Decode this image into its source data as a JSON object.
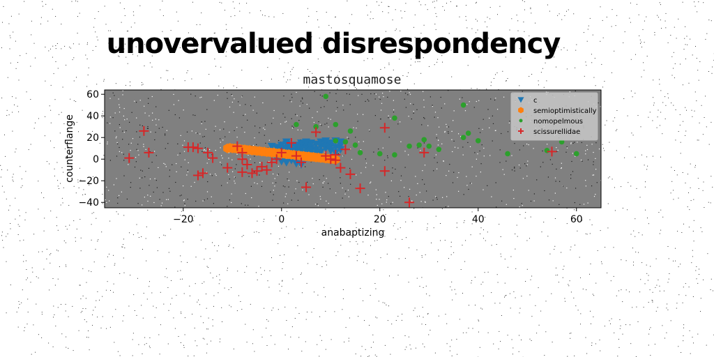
{
  "chart_data": {
    "type": "scatter",
    "suptitle": "unovervalued disrespondency",
    "title": "mastosquamose",
    "xlabel": "anabaptizing",
    "ylabel": "counterflange",
    "xlim": [
      -36,
      65
    ],
    "ylim": [
      -45,
      64
    ],
    "xticks": [
      -20,
      0,
      20,
      40,
      60
    ],
    "yticks": [
      -40,
      -20,
      0,
      20,
      40,
      60
    ],
    "plot_background": "#808080",
    "grid": false,
    "legend_position": "upper right",
    "series": [
      {
        "name": "c",
        "marker": "triangle-down",
        "color": "#1f77b4",
        "points": [
          [
            -2,
            12
          ],
          [
            -1,
            11
          ],
          [
            0,
            13
          ],
          [
            0,
            9
          ],
          [
            1,
            10
          ],
          [
            1,
            14
          ],
          [
            2,
            12
          ],
          [
            2,
            8
          ],
          [
            3,
            11
          ],
          [
            3,
            13
          ],
          [
            3,
            7
          ],
          [
            4,
            9
          ],
          [
            4,
            12
          ],
          [
            4,
            15
          ],
          [
            5,
            10
          ],
          [
            5,
            6
          ],
          [
            5,
            13
          ],
          [
            6,
            11
          ],
          [
            6,
            8
          ],
          [
            6,
            15
          ],
          [
            7,
            14
          ],
          [
            7,
            9
          ],
          [
            7,
            5
          ],
          [
            8,
            12
          ],
          [
            8,
            16
          ],
          [
            8,
            7
          ],
          [
            9,
            10
          ],
          [
            9,
            14
          ],
          [
            9,
            17
          ],
          [
            10,
            8
          ],
          [
            10,
            12
          ],
          [
            10,
            15
          ],
          [
            11,
            11
          ],
          [
            11,
            6
          ],
          [
            11,
            17
          ],
          [
            12,
            9
          ],
          [
            12,
            13
          ],
          [
            12,
            16
          ],
          [
            3,
            4
          ],
          [
            4,
            2
          ],
          [
            5,
            1
          ],
          [
            2,
            -1
          ],
          [
            3,
            -4
          ],
          [
            4,
            -5
          ],
          [
            -1,
            1
          ],
          [
            0,
            -2
          ],
          [
            1,
            -3
          ],
          [
            6,
            2
          ],
          [
            7,
            3
          ],
          [
            1,
            16
          ],
          [
            5,
            16
          ],
          [
            2,
            4
          ],
          [
            -2,
            6
          ],
          [
            -3,
            8
          ]
        ]
      },
      {
        "name": "semioptimistically",
        "marker": "hexagon",
        "color": "#ff7f0e",
        "points": [
          [
            -11,
            10
          ],
          [
            -10,
            10
          ],
          [
            -9,
            9.5
          ],
          [
            -8,
            9
          ],
          [
            -7,
            8.5
          ],
          [
            -6,
            8
          ],
          [
            -5,
            7.5
          ],
          [
            -4,
            7
          ],
          [
            -3,
            6.5
          ],
          [
            -2,
            6
          ],
          [
            -1,
            5.5
          ],
          [
            0,
            5
          ],
          [
            1,
            4.5
          ],
          [
            2,
            4
          ],
          [
            3,
            3.5
          ],
          [
            4,
            3
          ],
          [
            5,
            2.5
          ],
          [
            6,
            2
          ],
          [
            7,
            1.5
          ],
          [
            8,
            1
          ],
          [
            9,
            0.5
          ],
          [
            10,
            0
          ],
          [
            11,
            -0.5
          ],
          [
            -10.5,
            10.5
          ],
          [
            -9.5,
            10
          ],
          [
            -8.5,
            9.5
          ],
          [
            -7.5,
            9
          ],
          [
            -6.5,
            8.5
          ],
          [
            -5.5,
            8
          ],
          [
            -4.5,
            7.5
          ],
          [
            -3.5,
            7
          ],
          [
            -2.5,
            6.5
          ],
          [
            -1.5,
            6
          ],
          [
            -0.5,
            5.5
          ],
          [
            0.5,
            5
          ],
          [
            1.5,
            4.5
          ],
          [
            2.5,
            4
          ],
          [
            3.5,
            3.5
          ],
          [
            4.5,
            3
          ],
          [
            5.5,
            2.5
          ],
          [
            6.5,
            2
          ],
          [
            7.5,
            1.5
          ],
          [
            8.5,
            1
          ],
          [
            9.5,
            0.5
          ],
          [
            10.5,
            0
          ]
        ]
      },
      {
        "name": "nomopelmous",
        "marker": "circle",
        "color": "#2ca02c",
        "points": [
          [
            9,
            58
          ],
          [
            37,
            50
          ],
          [
            3,
            32
          ],
          [
            7,
            30
          ],
          [
            11,
            32
          ],
          [
            23,
            38
          ],
          [
            14,
            26
          ],
          [
            38,
            24
          ],
          [
            37,
            20
          ],
          [
            40,
            17
          ],
          [
            29,
            18
          ],
          [
            13,
            16
          ],
          [
            15,
            13
          ],
          [
            26,
            12
          ],
          [
            28,
            13
          ],
          [
            30,
            12
          ],
          [
            32,
            9
          ],
          [
            16,
            6
          ],
          [
            20,
            5
          ],
          [
            23,
            4
          ],
          [
            46,
            5
          ],
          [
            54,
            8
          ],
          [
            57,
            16
          ],
          [
            60,
            5
          ],
          [
            11,
            17
          ]
        ]
      },
      {
        "name": "scissurellidae",
        "marker": "plus",
        "color": "#d62728",
        "points": [
          [
            -28,
            26
          ],
          [
            -31,
            1
          ],
          [
            -27,
            6
          ],
          [
            -19,
            11
          ],
          [
            -18,
            11
          ],
          [
            -17,
            10
          ],
          [
            -15,
            6
          ],
          [
            -14,
            1
          ],
          [
            -16,
            -13
          ],
          [
            -17,
            -15
          ],
          [
            -11,
            -8
          ],
          [
            -9,
            12
          ],
          [
            -8,
            6
          ],
          [
            -8,
            0
          ],
          [
            -8,
            -12
          ],
          [
            -7,
            -5
          ],
          [
            -6,
            -13
          ],
          [
            -5,
            -11
          ],
          [
            -4,
            -7
          ],
          [
            -3,
            -10
          ],
          [
            -2,
            -3
          ],
          [
            -1,
            0
          ],
          [
            0,
            6
          ],
          [
            2,
            15
          ],
          [
            3,
            3
          ],
          [
            4,
            -3
          ],
          [
            5,
            -26
          ],
          [
            7,
            25
          ],
          [
            9,
            3
          ],
          [
            10,
            0
          ],
          [
            11,
            -1
          ],
          [
            11,
            4
          ],
          [
            12,
            -8
          ],
          [
            13,
            9
          ],
          [
            14,
            -14
          ],
          [
            16,
            -27
          ],
          [
            21,
            29
          ],
          [
            21,
            -11
          ],
          [
            26,
            -40
          ],
          [
            29,
            6
          ],
          [
            55,
            7
          ]
        ]
      }
    ]
  }
}
